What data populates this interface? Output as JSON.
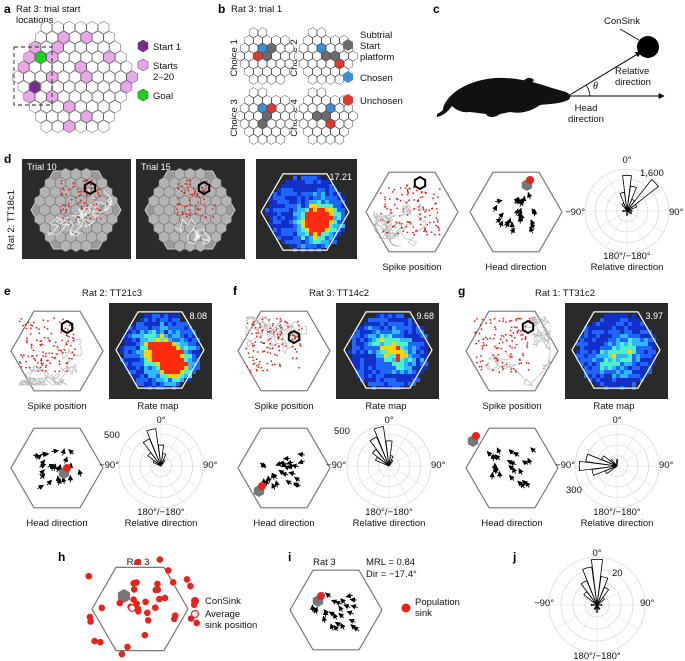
{
  "colors": {
    "start1": "#7b2d8e",
    "starts": "#e9a6ea",
    "goal": "#17d317",
    "subtrial": "#6b6b6b",
    "chosen": "#3b8fd9",
    "unchosen": "#e03a2f",
    "sink": "#e8231c",
    "spike": "#e0201a",
    "path": "#b8b8b8"
  },
  "panel_a": {
    "label": "a",
    "title_line1": "Rat 3: trial start",
    "title_line2": "locations",
    "legend": [
      {
        "label": "Start 1",
        "swatch": "start1"
      },
      {
        "label": "Starts",
        "label2": "2–20",
        "swatch": "starts"
      },
      {
        "label": "Goal",
        "swatch": "goal"
      }
    ]
  },
  "panel_b": {
    "label": "b",
    "title": "Rat 3: trial 1",
    "choices": [
      "Choice 1",
      "Choice 2",
      "Choice 3",
      "Choice 4"
    ],
    "legend": [
      {
        "label": "Subtrial",
        "label2": "Start",
        "label3": "platform",
        "swatch": "subtrial"
      },
      {
        "label": "Chosen",
        "swatch": "chosen"
      },
      {
        "label": "Unchosen",
        "swatch": "unchosen"
      }
    ]
  },
  "panel_c": {
    "label": "c",
    "consink": "ConSink",
    "theta": "θ",
    "relative_direction": [
      "Relative",
      "direction"
    ],
    "head_direction": [
      "Head",
      "direction"
    ]
  },
  "panel_d": {
    "label": "d",
    "side_label": "Rat 2: TT18c1",
    "trial_a": "Trial 10",
    "trial_b": "Trial 15",
    "rate_peak": "17.21",
    "spike_position": "Spike position",
    "head_direction": "Head direction",
    "polar": {
      "top": "0°",
      "left": "−90°",
      "right": "90°",
      "bottom": "180°/−180°",
      "caption": "Relative direction",
      "max": "1,600"
    }
  },
  "panel_e": {
    "label": "e",
    "title": "Rat 2: TT21c3",
    "rate_peak": "8.08",
    "spike_position": "Spike position",
    "rate_map": "Rate map",
    "head_direction": "Head direction",
    "polar": {
      "top": "0°",
      "left": "−90°",
      "right": "90°",
      "bottom": "180°/−180°",
      "caption": "Relative direction",
      "max": "500"
    }
  },
  "panel_f": {
    "label": "f",
    "title": "Rat 3: TT14c2",
    "rate_peak": "9.68",
    "spike_position": "Spike position",
    "rate_map": "Rate map",
    "head_direction": "Head direction",
    "polar": {
      "top": "0°",
      "left": "−90°",
      "right": "90°",
      "bottom": "180°/−180°",
      "caption": "Relative direction",
      "max": "500"
    }
  },
  "panel_g": {
    "label": "g",
    "title": "Rat 1: TT31c2",
    "rate_peak": "3.97",
    "spike_position": "Spike position",
    "rate_map": "Rate map",
    "head_direction": "Head direction",
    "polar": {
      "top": "0°",
      "left": "−90°",
      "right": "90°",
      "bottom": "180°/−180°",
      "caption": "Relative direction",
      "max": "300"
    }
  },
  "panel_h": {
    "label": "h",
    "title": "Rat 3",
    "legend_consink": "ConSink",
    "legend_avg_line1": "Average",
    "legend_avg_line2": "sink position"
  },
  "panel_i": {
    "label": "i",
    "title": "Rat 3",
    "mrl": "MRL = 0.84",
    "dir": "Dir = −17.4°",
    "legend_line1": "Population",
    "legend_line2": "sink"
  },
  "panel_j": {
    "label": "j",
    "top": "0°",
    "left": "−90°",
    "right": "90°",
    "bottom": "180°/−180°",
    "max": "20"
  }
}
